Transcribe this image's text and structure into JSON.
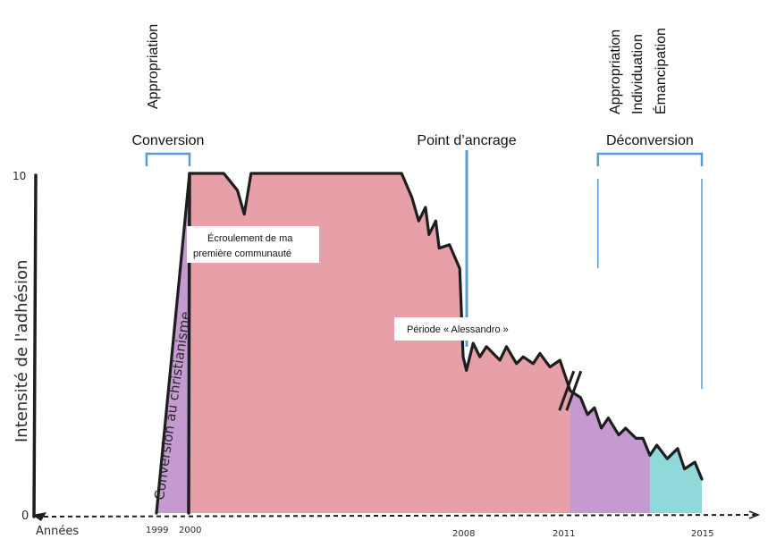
{
  "chart_data": {
    "type": "area",
    "ylabel": "Intensité de l'adhésion",
    "xlabel": "Années",
    "y_ticks": [
      "0",
      "10"
    ],
    "ylim": [
      0,
      10
    ],
    "x_ticks": [
      "1999",
      "2000",
      "2008",
      "2011",
      "2015"
    ],
    "series": [
      {
        "points": [
          [
            1999.0,
            0
          ],
          [
            2000.0,
            10
          ],
          [
            2001.0,
            10
          ],
          [
            2001.4,
            9.5
          ],
          [
            2001.6,
            8.8
          ],
          [
            2001.8,
            10
          ],
          [
            2003.0,
            10
          ],
          [
            2004.0,
            10
          ],
          [
            2005.0,
            10
          ],
          [
            2006.2,
            10
          ],
          [
            2006.5,
            9.3
          ],
          [
            2006.7,
            8.6
          ],
          [
            2006.9,
            9.0
          ],
          [
            2007.0,
            8.2
          ],
          [
            2007.2,
            8.6
          ],
          [
            2007.3,
            7.8
          ],
          [
            2007.6,
            7.9
          ],
          [
            2007.9,
            7.2
          ],
          [
            2008.0,
            4.6
          ],
          [
            2008.1,
            4.2
          ],
          [
            2008.3,
            5.0
          ],
          [
            2008.5,
            4.6
          ],
          [
            2008.7,
            4.9
          ],
          [
            2009.1,
            4.5
          ],
          [
            2009.3,
            4.9
          ],
          [
            2009.6,
            4.4
          ],
          [
            2009.8,
            4.6
          ],
          [
            2010.1,
            4.4
          ],
          [
            2010.3,
            4.7
          ],
          [
            2010.6,
            4.3
          ],
          [
            2010.9,
            4.5
          ],
          [
            2011.2,
            3.6
          ],
          [
            2011.5,
            3.4
          ],
          [
            2011.7,
            2.9
          ],
          [
            2011.9,
            3.1
          ],
          [
            2012.1,
            2.5
          ],
          [
            2012.3,
            2.8
          ],
          [
            2012.6,
            2.3
          ],
          [
            2012.8,
            2.5
          ],
          [
            2013.1,
            2.2
          ],
          [
            2013.3,
            2.2
          ],
          [
            2013.5,
            1.7
          ],
          [
            2013.7,
            2.0
          ],
          [
            2014.0,
            1.6
          ],
          [
            2014.3,
            1.9
          ],
          [
            2014.5,
            1.3
          ],
          [
            2014.8,
            1.5
          ],
          [
            2015.0,
            1.0
          ]
        ]
      }
    ],
    "phases": [
      {
        "label": "Conversion",
        "x_range": [
          1998.7,
          2000.0
        ]
      },
      {
        "label": "Point d’ancrage",
        "x": 2008.0
      },
      {
        "label": "Déconversion",
        "x_range": [
          2012.0,
          2015.0
        ]
      }
    ],
    "top_labels_vertical": [
      {
        "text": "Appropriation",
        "x": 1999.4
      },
      {
        "text": "Appropriation",
        "x": 2013.0
      },
      {
        "text": "Individuation",
        "x": 2013.5
      },
      {
        "text": "Émancipation",
        "x": 2014.0
      }
    ],
    "annotations": [
      {
        "text_lines": [
          "Écroulement de ma",
          "première communauté"
        ],
        "x": 2000.2,
        "y": 8.2
      },
      {
        "text": "Période « Alessandro »",
        "x": 2009.2,
        "y": 5.0
      },
      {
        "text": "Conversion au christianisme",
        "x": 1999.4,
        "y": 3.5
      }
    ],
    "colors": {
      "red_region": "#e8a0a8",
      "purple_region": "#c49ad0",
      "cyan_region": "#8fd9db",
      "outline": "#1e1e1e",
      "bracket": "#5b9bd5"
    },
    "regions": [
      {
        "name": "conversion",
        "x_range": [
          1999.0,
          2000.0
        ],
        "color": "purple_region"
      },
      {
        "name": "communauté",
        "x_range": [
          2000.0,
          2011.2
        ],
        "color": "red_region"
      },
      {
        "name": "déconversion-1",
        "x_range": [
          2011.2,
          2013.5
        ],
        "color": "purple_region"
      },
      {
        "name": "déconversion-2",
        "x_range": [
          2013.5,
          2015.0
        ],
        "color": "cyan_region"
      }
    ]
  }
}
